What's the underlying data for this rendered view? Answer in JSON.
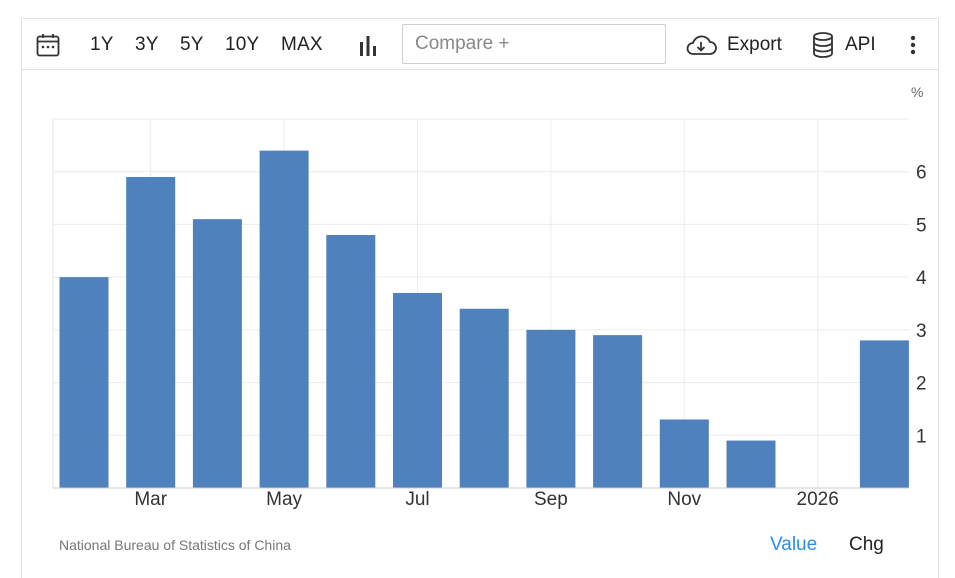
{
  "toolbar": {
    "icons": {
      "calendar": "calendar-icon",
      "chart_type": "bar-chart-icon",
      "export": "cloud-download-icon",
      "api": "database-icon",
      "more": "more-vertical-icon"
    },
    "ranges": [
      "1Y",
      "3Y",
      "5Y",
      "10Y",
      "MAX"
    ],
    "compare_placeholder": "Compare +",
    "export_label": "Export",
    "api_label": "API"
  },
  "footer": {
    "source": "National Bureau of Statistics of China",
    "value_tab": "Value",
    "chg_tab": "Chg"
  },
  "colors": {
    "bar": "#4f81bd",
    "accent": "#2b8ee8",
    "grid": "#ececec"
  },
  "chart_data": {
    "type": "bar",
    "unit": "%",
    "categories": [
      "2025-02",
      "2025-03",
      "2025-04",
      "2025-05",
      "2025-06",
      "2025-07",
      "2025-08",
      "2025-09",
      "2025-10",
      "2025-11",
      "2025-12",
      "2026-01",
      "2026-02"
    ],
    "values": [
      4.0,
      5.9,
      5.1,
      6.4,
      4.8,
      3.7,
      3.4,
      3.0,
      2.9,
      1.3,
      0.9,
      null,
      2.8
    ],
    "x_tick_labels": [
      "Mar",
      "May",
      "Jul",
      "Sep",
      "Nov",
      "2026"
    ],
    "x_tick_categories": [
      "2025-03",
      "2025-05",
      "2025-07",
      "2025-09",
      "2025-11",
      "2026-01"
    ],
    "y_ticks": [
      1,
      2,
      3,
      4,
      5,
      6
    ],
    "ylim": [
      0,
      7
    ],
    "y_axis_side": "right",
    "grid": true,
    "legend": "none"
  }
}
